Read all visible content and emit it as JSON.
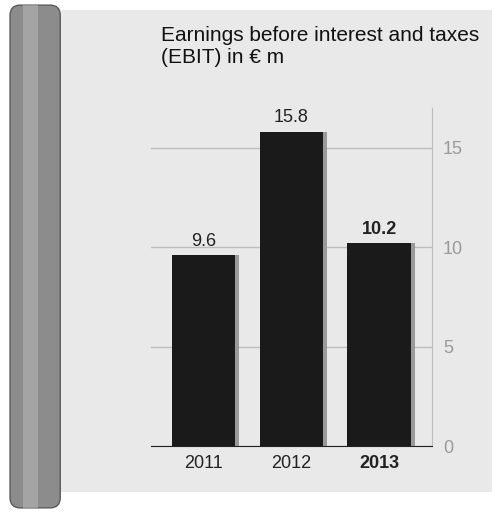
{
  "chart_data": {
    "type": "bar",
    "title": "Earnings before interest and taxes (EBIT) in € m",
    "categories": [
      "2011",
      "2012",
      "2013"
    ],
    "values": [
      9.6,
      15.8,
      10.2
    ],
    "color": "#1a1a1a",
    "ylim": [
      0,
      17
    ],
    "yticks": [
      0,
      5,
      10,
      15
    ],
    "grid": true,
    "data_labels": true
  }
}
